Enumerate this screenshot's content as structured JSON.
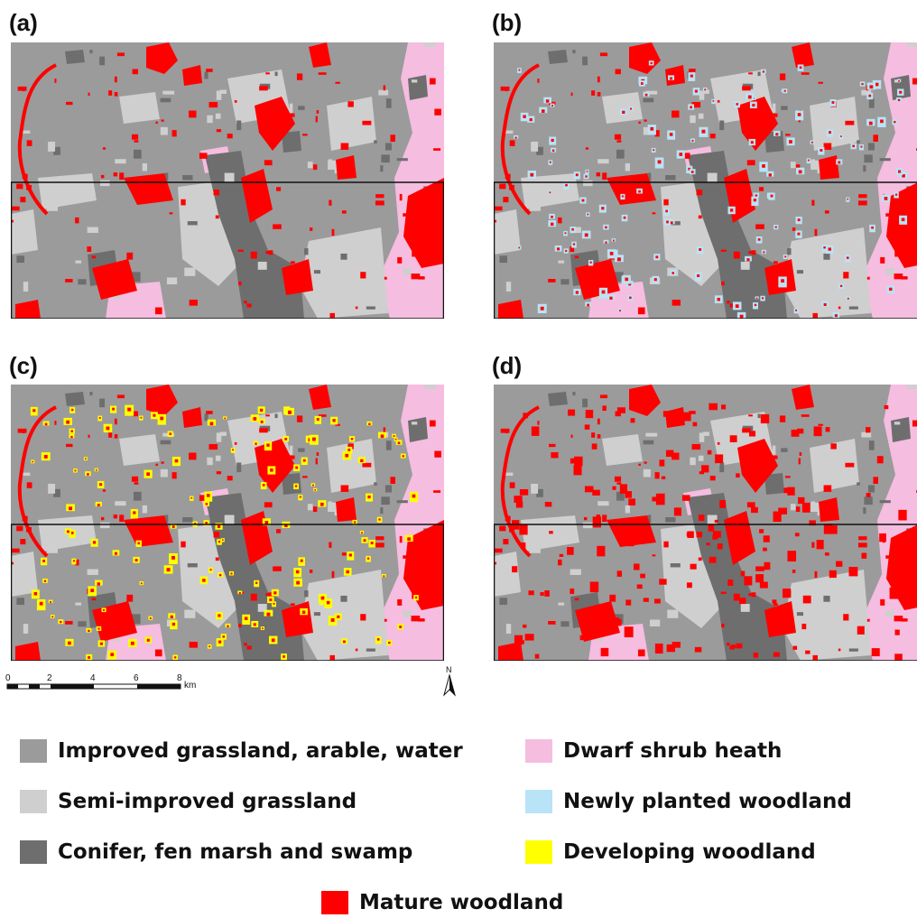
{
  "panels": [
    {
      "label": "(a)",
      "layers": [
        "mature"
      ]
    },
    {
      "label": "(b)",
      "layers": [
        "mature",
        "newly"
      ]
    },
    {
      "label": "(c)",
      "layers": [
        "mature",
        "developing"
      ]
    },
    {
      "label": "(d)",
      "layers": [
        "mature",
        "mature_extra"
      ]
    }
  ],
  "scale_bar": {
    "ticks": [
      "0",
      "2",
      "4",
      "6",
      "8"
    ],
    "unit": "km"
  },
  "north_arrow": {
    "label": "N",
    "icon": "north-arrow-icon"
  },
  "colors": {
    "improved": "#9b9b9b",
    "semi": "#cfcfcf",
    "conifer": "#6e6e6e",
    "heath": "#f5bde0",
    "newly": "#b9e3f7",
    "developing": "#ffff00",
    "mature": "#ff0000"
  },
  "legend": [
    {
      "key": "improved",
      "label": "Improved grassland, arable, water"
    },
    {
      "key": "heath",
      "label": "Dwarf shrub heath"
    },
    {
      "key": "semi",
      "label": "Semi-improved grassland"
    },
    {
      "key": "newly",
      "label": "Newly planted woodland"
    },
    {
      "key": "conifer",
      "label": "Conifer, fen marsh and swamp"
    },
    {
      "key": "developing",
      "label": "Developing woodland"
    },
    {
      "key": "mature",
      "label": "Mature woodland"
    }
  ]
}
